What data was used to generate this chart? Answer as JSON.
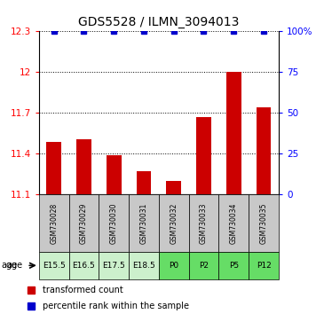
{
  "title": "GDS5528 / ILMN_3094013",
  "samples": [
    "GSM730028",
    "GSM730029",
    "GSM730030",
    "GSM730031",
    "GSM730032",
    "GSM730033",
    "GSM730034",
    "GSM730035"
  ],
  "ages": [
    "E15.5",
    "E16.5",
    "E17.5",
    "E18.5",
    "P0",
    "P2",
    "P5",
    "P12"
  ],
  "bar_values": [
    11.49,
    11.505,
    11.39,
    11.27,
    11.2,
    11.67,
    12.0,
    11.74
  ],
  "percentile_values": [
    100,
    100,
    100,
    100,
    100,
    100,
    100,
    100
  ],
  "ymin": 11.1,
  "ymax": 12.3,
  "yticks_left": [
    11.1,
    11.4,
    11.7,
    12.0,
    12.3
  ],
  "ytick_labels_left": [
    "11.1",
    "11.4",
    "11.7",
    "12",
    "12.3"
  ],
  "yticks_right": [
    0,
    25,
    50,
    75,
    100
  ],
  "ytick_labels_right": [
    "0",
    "25",
    "50",
    "75",
    "100%"
  ],
  "bar_color": "#cc0000",
  "dot_color": "#0000cc",
  "label_red": "transformed count",
  "label_blue": "percentile rank within the sample",
  "sample_bg_color": "#c8c8c8",
  "age_e_color": "#ccf0cc",
  "age_p_color": "#66dd66",
  "title_fontsize": 10,
  "tick_fontsize": 7.5,
  "bar_width": 0.5
}
